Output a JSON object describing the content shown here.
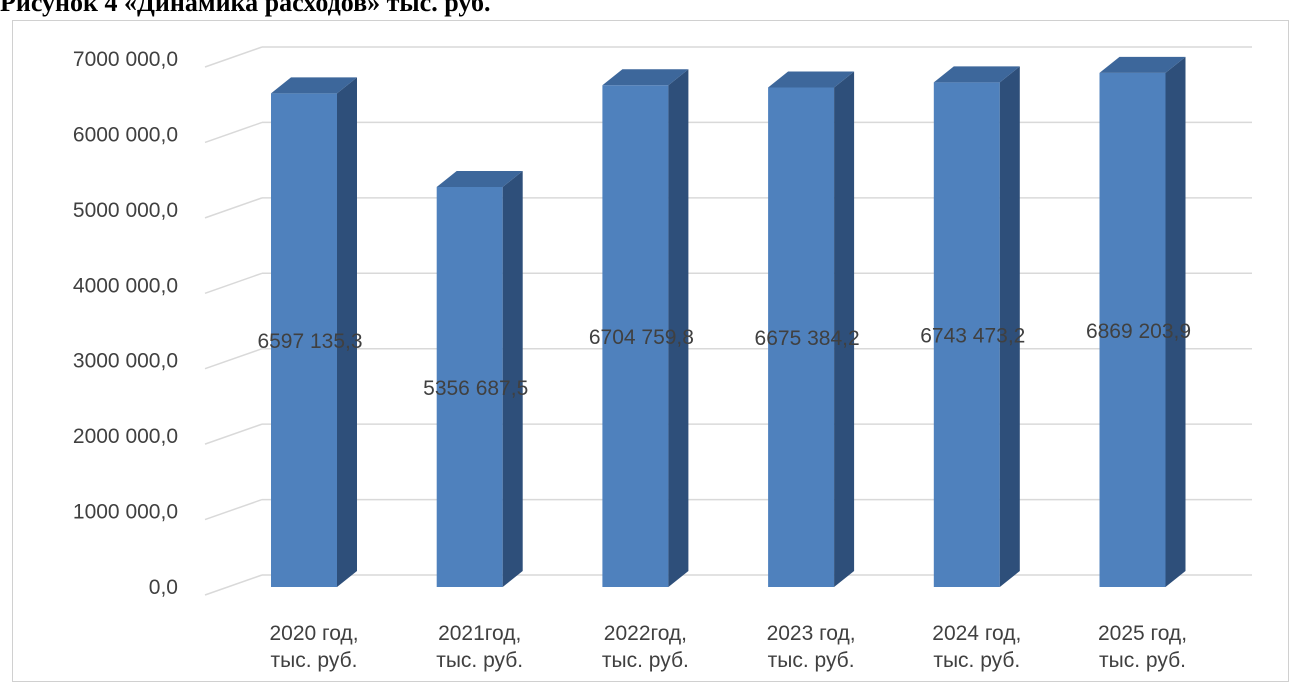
{
  "caption": "Рисунок 4 «Динамика расходов» тыс. руб.",
  "colors": {
    "bar_front": "#4f81bd",
    "bar_side": "#2e4f7a",
    "bar_top": "#3d679b",
    "grid": "#d9d9d9",
    "text": "#404040"
  },
  "chart_data": {
    "type": "bar",
    "title": "",
    "xlabel": "",
    "ylabel": "",
    "categories": [
      [
        "2020 год,",
        "тыс. руб."
      ],
      [
        "2021год,",
        "тыс. руб."
      ],
      [
        "2022год,",
        "тыс. руб."
      ],
      [
        "2023 год,",
        "тыс. руб."
      ],
      [
        "2024 год,",
        "тыс. руб."
      ],
      [
        "2025 год,",
        "тыс. руб."
      ]
    ],
    "values": [
      6597135.3,
      5356687.5,
      6704759.8,
      6675384.2,
      6743473.2,
      6869203.9
    ],
    "data_labels": [
      "6597 135,3",
      "5356 687,5",
      "6704 759,8",
      "6675 384,2",
      "6743 473,2",
      "6869 203,9"
    ],
    "ylim": [
      0,
      7000000
    ],
    "yticks": [
      0,
      1000000,
      2000000,
      3000000,
      4000000,
      5000000,
      6000000,
      7000000
    ],
    "ytick_labels": [
      "0,0",
      "1000 000,0",
      "2000 000,0",
      "3000 000,0",
      "4000 000,0",
      "5000 000,0",
      "6000 000,0",
      "7000 000,0"
    ],
    "grid": true,
    "legend": "none",
    "style": "3d-column"
  }
}
